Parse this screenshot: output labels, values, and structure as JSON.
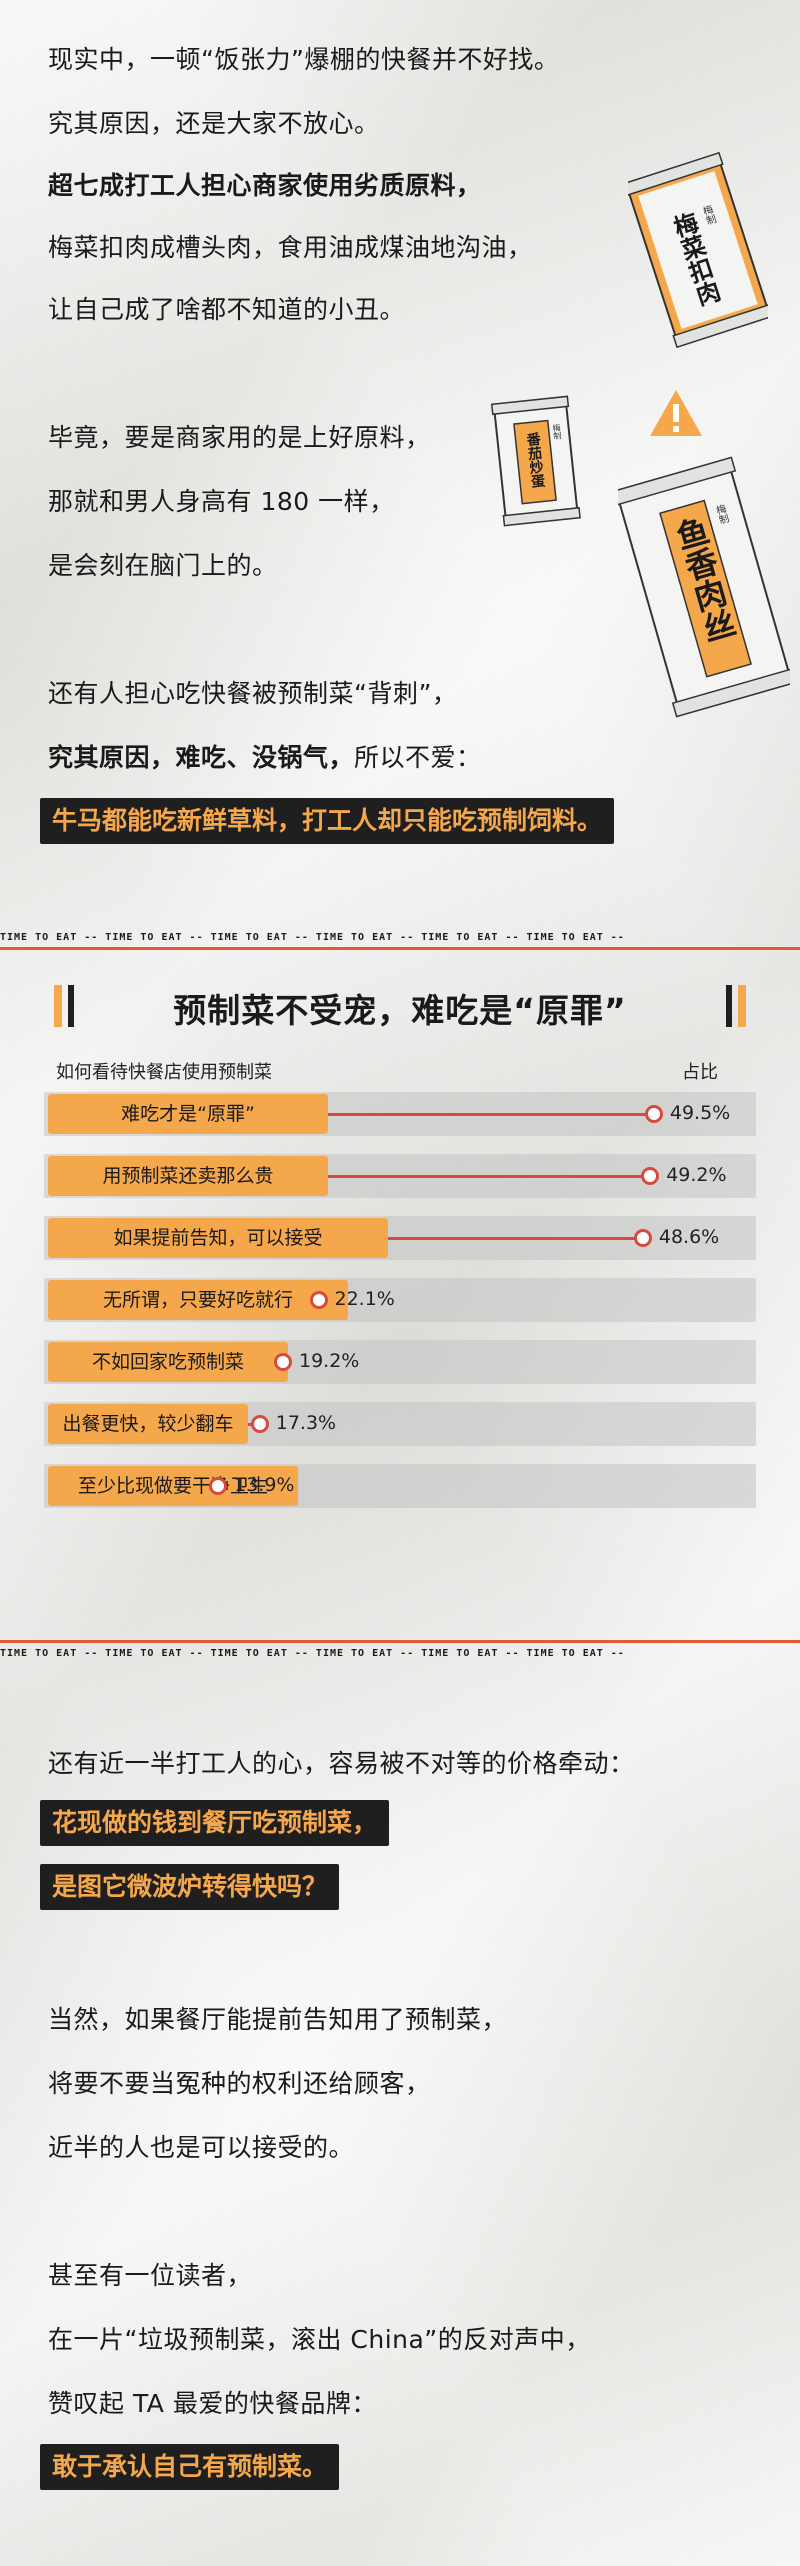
{
  "intro": {
    "lines": [
      "现实中，一顿“饭张力”爆棚的快餐并不好找。",
      "究其原因，还是大家不放心。",
      "超七成打工人担心商家使用劣质原料，",
      "梅菜扣肉成槽头肉，食用油成煤油地沟油，",
      "让自己成了啥都不知道的小丑。",
      "毕竟，要是商家用的是上好原料，",
      "那就和男人身高有 180 一样，",
      "是会刻在脑门上的。",
      "还有人担心吃快餐被预制菜“背刺”，",
      "究其原因，难吃、没锅气，",
      "所以不爱：",
      "牛马都能吃新鲜草料，打工人却只能吃预制饲料。"
    ]
  },
  "packages": {
    "pack1": {
      "name": "梅菜扣肉",
      "tag": "梅制"
    },
    "pack2": {
      "name": "番茄炒蛋",
      "tag": "梅制"
    },
    "pack3": {
      "name": "鱼香肉丝",
      "tag": "梅制"
    }
  },
  "ribbon": {
    "text": "TIME TO EAT",
    "sep": "--"
  },
  "chart_data": {
    "type": "bar",
    "title": "预制菜不受宠，难吃是“原罪”",
    "subtitle": "如何看待快餐店使用预制菜",
    "unit_label": "占比",
    "categories": [
      "难吃才是“原罪”",
      "用预制菜还卖那么贵",
      "如果提前告知，可以接受",
      "无所谓，只要好吃就行",
      "不如回家吃预制菜",
      "出餐更快，较少翻车",
      "至少比现做要干净卫生"
    ],
    "values": [
      49.5,
      49.2,
      48.6,
      22.1,
      19.2,
      17.3,
      13.9
    ],
    "value_labels": [
      "49.5%",
      "49.2%",
      "48.6%",
      "22.1%",
      "19.2%",
      "17.3%",
      "13.9%"
    ],
    "ylim": [
      0,
      50
    ],
    "colors": {
      "label_bg": "#f5a74c",
      "bar": "#d84b3c",
      "track": "#c8c8c8"
    }
  },
  "outro": {
    "lines": [
      "还有近一半打工人的心，容易被不对等的价格牵动：",
      "花现做的钱到餐厅吃预制菜，",
      "是图它微波炉转得快吗？",
      "当然，如果餐厅能提前告知用了预制菜，",
      "将要不要当冤种的权利还给顾客，",
      "近半的人也是可以接受的。",
      "甚至有一位读者，",
      "在一片“垃圾预制菜，滚出 China”的反对声中，",
      "赞叹起 TA 最爱的快餐品牌：",
      "敢于承认自己有预制菜。"
    ]
  }
}
